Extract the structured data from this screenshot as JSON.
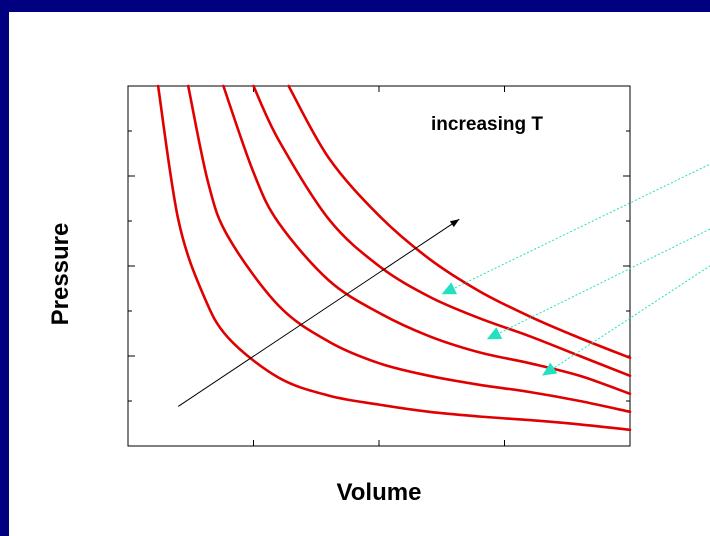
{
  "chart_data": {
    "type": "line",
    "title": "",
    "xlabel": "Volume",
    "ylabel": "Pressure",
    "xlim": [
      0,
      10
    ],
    "ylim": [
      0,
      10
    ],
    "grid": false,
    "legend": "none",
    "annotation": "increasing T",
    "line_color": "#e00000",
    "marker_color": "#22e0c0",
    "series": [
      {
        "values": [
          [
            0.6,
            10.0
          ],
          [
            1.0,
            6.3
          ],
          [
            1.5,
            4.2
          ],
          [
            2.0,
            3.0
          ],
          [
            3.0,
            1.9
          ],
          [
            4.0,
            1.4
          ],
          [
            5.0,
            1.15
          ],
          [
            6.0,
            0.95
          ],
          [
            7.0,
            0.82
          ],
          [
            8.0,
            0.72
          ],
          [
            9.0,
            0.6
          ],
          [
            10.0,
            0.45
          ]
        ]
      },
      {
        "values": [
          [
            1.2,
            10.0
          ],
          [
            1.6,
            7.3
          ],
          [
            2.0,
            5.8
          ],
          [
            3.0,
            3.9
          ],
          [
            4.0,
            2.9
          ],
          [
            5.0,
            2.3
          ],
          [
            6.0,
            1.95
          ],
          [
            7.0,
            1.7
          ],
          [
            8.0,
            1.5
          ],
          [
            9.0,
            1.25
          ],
          [
            10.0,
            0.95
          ]
        ]
      },
      {
        "values": [
          [
            1.9,
            10.0
          ],
          [
            2.5,
            7.6
          ],
          [
            3.0,
            6.2
          ],
          [
            4.0,
            4.6
          ],
          [
            5.0,
            3.7
          ],
          [
            6.0,
            3.05
          ],
          [
            7.0,
            2.6
          ],
          [
            8.0,
            2.3
          ],
          [
            9.0,
            1.95
          ],
          [
            10.0,
            1.45
          ]
        ]
      },
      {
        "values": [
          [
            2.5,
            10.0
          ],
          [
            3.0,
            8.5
          ],
          [
            4.0,
            6.3
          ],
          [
            5.0,
            5.0
          ],
          [
            6.0,
            4.15
          ],
          [
            7.0,
            3.55
          ],
          [
            8.0,
            3.05
          ],
          [
            9.0,
            2.5
          ],
          [
            10.0,
            1.95
          ]
        ]
      },
      {
        "values": [
          [
            3.2,
            10.0
          ],
          [
            4.0,
            8.0
          ],
          [
            5.0,
            6.4
          ],
          [
            6.0,
            5.2
          ],
          [
            7.0,
            4.3
          ],
          [
            8.0,
            3.6
          ],
          [
            9.0,
            3.0
          ],
          [
            10.0,
            2.45
          ]
        ]
      }
    ],
    "arrow": {
      "from": [
        1.0,
        1.1
      ],
      "to": [
        6.6,
        6.3
      ]
    },
    "markers": [
      {
        "at": [
          6.3,
          4.25
        ],
        "to": [
          11.7,
          7.9
        ]
      },
      {
        "at": [
          7.2,
          3.0
        ],
        "to": [
          11.7,
          6.1
        ]
      },
      {
        "at": [
          8.3,
          2.0
        ],
        "to": [
          11.7,
          5.1
        ]
      }
    ]
  }
}
